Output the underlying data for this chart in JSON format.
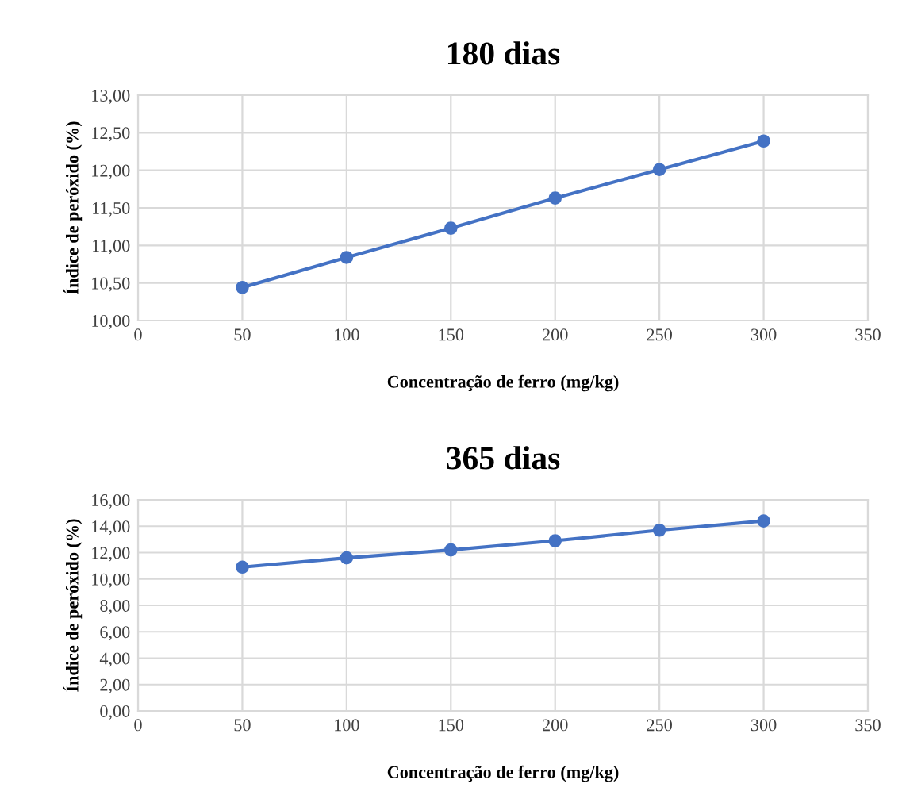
{
  "chart_data": [
    {
      "type": "line",
      "title": "180 dias",
      "xlabel": "Concentração de ferro (mg/kg)",
      "ylabel": "Índice de peróxido (%)",
      "x": [
        50,
        100,
        150,
        200,
        250,
        300
      ],
      "series": [
        {
          "color": "#4472c4",
          "values": [
            10.44,
            10.84,
            11.23,
            11.63,
            12.01,
            12.39
          ]
        }
      ],
      "xlim": [
        0,
        350
      ],
      "xticks": [
        0,
        50,
        100,
        150,
        200,
        250,
        300,
        350
      ],
      "ylim": [
        10,
        13
      ],
      "yticks": [
        {
          "value": 10,
          "label": "10,00"
        },
        {
          "value": 10.5,
          "label": "10,50"
        },
        {
          "value": 11,
          "label": "11,00"
        },
        {
          "value": 11.5,
          "label": "11,50"
        },
        {
          "value": 12,
          "label": "12,00"
        },
        {
          "value": 12.5,
          "label": "12,50"
        },
        {
          "value": 13,
          "label": "13,00"
        }
      ],
      "grid": true,
      "marker": "circle",
      "line_style": "solid"
    },
    {
      "type": "line",
      "title": "365 dias",
      "xlabel": "Concentração de ferro (mg/kg)",
      "ylabel": "Índice de peróxido (%)",
      "x": [
        50,
        100,
        150,
        200,
        250,
        300
      ],
      "series": [
        {
          "color": "#4472c4",
          "values": [
            10.9,
            11.6,
            12.2,
            12.9,
            13.7,
            14.4
          ]
        }
      ],
      "xlim": [
        0,
        350
      ],
      "xticks": [
        0,
        50,
        100,
        150,
        200,
        250,
        300,
        350
      ],
      "ylim": [
        0,
        16
      ],
      "yticks": [
        {
          "value": 0,
          "label": "0,00"
        },
        {
          "value": 2,
          "label": "2,00"
        },
        {
          "value": 4,
          "label": "4,00"
        },
        {
          "value": 6,
          "label": "6,00"
        },
        {
          "value": 8,
          "label": "8,00"
        },
        {
          "value": 10,
          "label": "10,00"
        },
        {
          "value": 12,
          "label": "12,00"
        },
        {
          "value": 14,
          "label": "14,00"
        },
        {
          "value": 16,
          "label": "16,00"
        }
      ],
      "grid": true,
      "marker": "circle",
      "line_style": "solid"
    }
  ]
}
